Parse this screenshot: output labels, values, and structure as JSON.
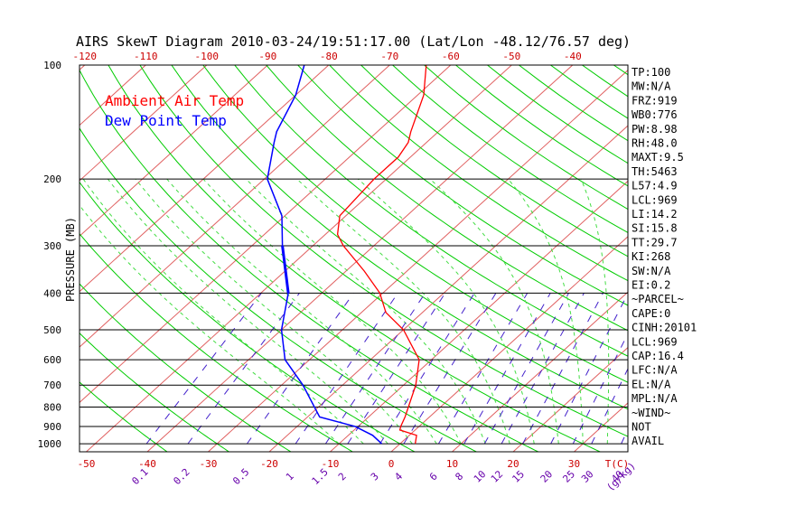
{
  "title": "AIRS SkewT Diagram 2010-03-24/19:51:17.00 (Lat/Lon -48.12/76.57 deg)",
  "legend": [
    {
      "label": "Ambient Air Temp",
      "color": "#ff0000"
    },
    {
      "label": "Dew Point Temp",
      "color": "#0000ff"
    }
  ],
  "y_axis_label": "PRESSURE (MB)",
  "colors": {
    "isotherm": "#e06060",
    "dry_adiabat": "#00cc00",
    "moist_adiabat": "#44dd44",
    "mixing_ratio": "#4422cc",
    "isobar": "#000000",
    "axis_tick_text": "#cc0000",
    "mixing_text": "#6600aa",
    "text": "#000000"
  },
  "chart_data": {
    "type": "line",
    "x_axis": "temperature (°C), skewed",
    "y_axis": "pressure (mb), log scale",
    "pressure_ticks": [
      100,
      200,
      300,
      400,
      500,
      600,
      700,
      800,
      900,
      1000
    ],
    "top_temp_ticks": [
      "-120",
      "-110",
      "-100",
      "-90",
      "-80",
      "-70",
      "-60",
      "-50",
      "-40"
    ],
    "bottom_temp_ticks": [
      "-50",
      "-40",
      "-30",
      "-20",
      "-10",
      "0",
      "10",
      "20",
      "30",
      "T(C)"
    ],
    "mixing_ratio_labels": [
      "0.1",
      "0.2",
      "0.5",
      "1",
      "1.5",
      "2",
      "3",
      "4",
      "6",
      "8",
      "10",
      "12",
      "15",
      "20",
      "25",
      "30",
      "40",
      "(g/kg)"
    ],
    "series": [
      {
        "name": "Ambient Air Temp",
        "color": "#ff0000",
        "points": [
          [
            1000,
            2.5
          ],
          [
            950,
            1.2
          ],
          [
            920,
            -2.5
          ],
          [
            900,
            -3.0
          ],
          [
            850,
            -4.0
          ],
          [
            700,
            -8.0
          ],
          [
            600,
            -12.0
          ],
          [
            500,
            -20.0
          ],
          [
            450,
            -26.0
          ],
          [
            400,
            -30.5
          ],
          [
            350,
            -37.0
          ],
          [
            300,
            -45.0
          ],
          [
            280,
            -48.0
          ],
          [
            250,
            -51.0
          ],
          [
            200,
            -52.0
          ],
          [
            175,
            -52.0
          ],
          [
            160,
            -53.0
          ],
          [
            150,
            -54.5
          ],
          [
            120,
            -59.0
          ],
          [
            100,
            -64.0
          ]
        ]
      },
      {
        "name": "Dew Point Temp",
        "color": "#0000ff",
        "points": [
          [
            1000,
            -3.0
          ],
          [
            950,
            -6.0
          ],
          [
            900,
            -10.5
          ],
          [
            850,
            -18.0
          ],
          [
            700,
            -26.5
          ],
          [
            600,
            -34.0
          ],
          [
            500,
            -40.0
          ],
          [
            400,
            -45.5
          ],
          [
            300,
            -55.0
          ],
          [
            250,
            -60.5
          ],
          [
            200,
            -69.5
          ],
          [
            160,
            -75.0
          ],
          [
            150,
            -76.5
          ],
          [
            120,
            -80.0
          ],
          [
            100,
            -84.0
          ]
        ]
      }
    ]
  },
  "indices": [
    "TP:100",
    "MW:N/A",
    "FRZ:919",
    "WB0:776",
    "PW:8.98",
    "RH:48.0",
    "MAXT:9.5",
    "TH:5463",
    "L57:4.9",
    "LCL:969",
    "LI:14.2",
    "SI:15.8",
    "TT:29.7",
    "KI:268",
    "SW:N/A",
    "EI:0.2",
    "~PARCEL~",
    "CAPE:0",
    "CINH:20101",
    "LCL:969",
    "CAP:16.4",
    "LFC:N/A",
    "EL:N/A",
    "MPL:N/A",
    "~WIND~",
    "NOT",
    "AVAIL"
  ]
}
